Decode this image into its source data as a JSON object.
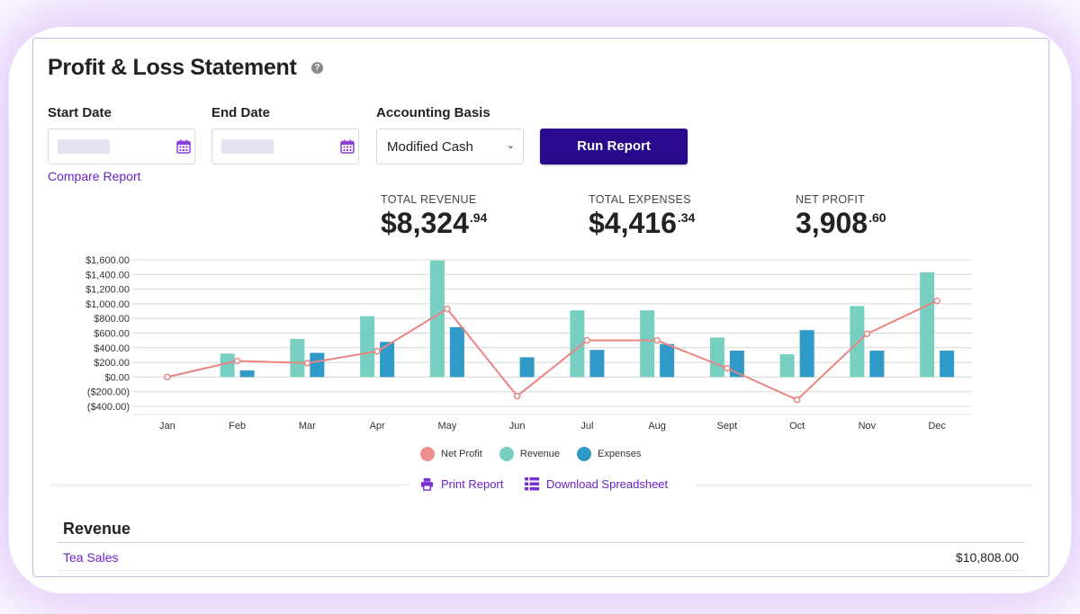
{
  "page": {
    "title": "Profit & Loss Statement",
    "help_icon": "?"
  },
  "filters": {
    "start_date_label": "Start Date",
    "start_date_value": "",
    "end_date_label": "End Date",
    "end_date_value": "",
    "basis_label": "Accounting Basis",
    "basis_value": "Modified Cash",
    "run_label": "Run Report",
    "compare_label": "Compare Report"
  },
  "summary": {
    "revenue": {
      "label": "TOTAL REVENUE",
      "whole": "$8,324",
      "cents": ".94"
    },
    "expenses": {
      "label": "TOTAL EXPENSES",
      "whole": "$4,416",
      "cents": ".34"
    },
    "profit": {
      "label": "NET PROFIT",
      "whole": "3,908",
      "cents": ".60"
    }
  },
  "colors": {
    "accent": "#6b21c8",
    "button": "#2a0a8c",
    "revenue": "#76cfc0",
    "expenses": "#2f9ac8",
    "net_profit": "#e98585"
  },
  "chart_data": {
    "type": "bar",
    "categories": [
      "Jan",
      "Feb",
      "Mar",
      "Apr",
      "May",
      "Jun",
      "Jul",
      "Aug",
      "Sept",
      "Oct",
      "Nov",
      "Dec"
    ],
    "series": [
      {
        "name": "Net Profit",
        "type": "line",
        "values": [
          0,
          220,
          190,
          350,
          930,
          -260,
          500,
          500,
          120,
          -310,
          590,
          1040
        ]
      },
      {
        "name": "Revenue",
        "type": "bar",
        "values": [
          0,
          320,
          520,
          830,
          1590,
          0,
          910,
          910,
          540,
          310,
          970,
          1430
        ]
      },
      {
        "name": "Expenses",
        "type": "bar",
        "values": [
          0,
          90,
          330,
          480,
          680,
          270,
          370,
          450,
          360,
          640,
          360,
          360
        ]
      }
    ],
    "yticks": [
      "$1,600.00",
      "$1,400.00",
      "$1,200.00",
      "$1,000.00",
      "$800.00",
      "$600.00",
      "$400.00",
      "$200.00",
      "$0.00",
      "($200.00)",
      "($400.00)"
    ],
    "ylim": [
      -400,
      1600
    ],
    "grid": true,
    "legend_position": "bottom"
  },
  "legend": [
    "Net Profit",
    "Revenue",
    "Expenses"
  ],
  "actions": {
    "print_label": "Print Report",
    "download_label": "Download Spreadsheet"
  },
  "revenue_section": {
    "heading": "Revenue",
    "rows": [
      {
        "name": "Tea Sales",
        "amount": "$10,808.00"
      }
    ]
  }
}
